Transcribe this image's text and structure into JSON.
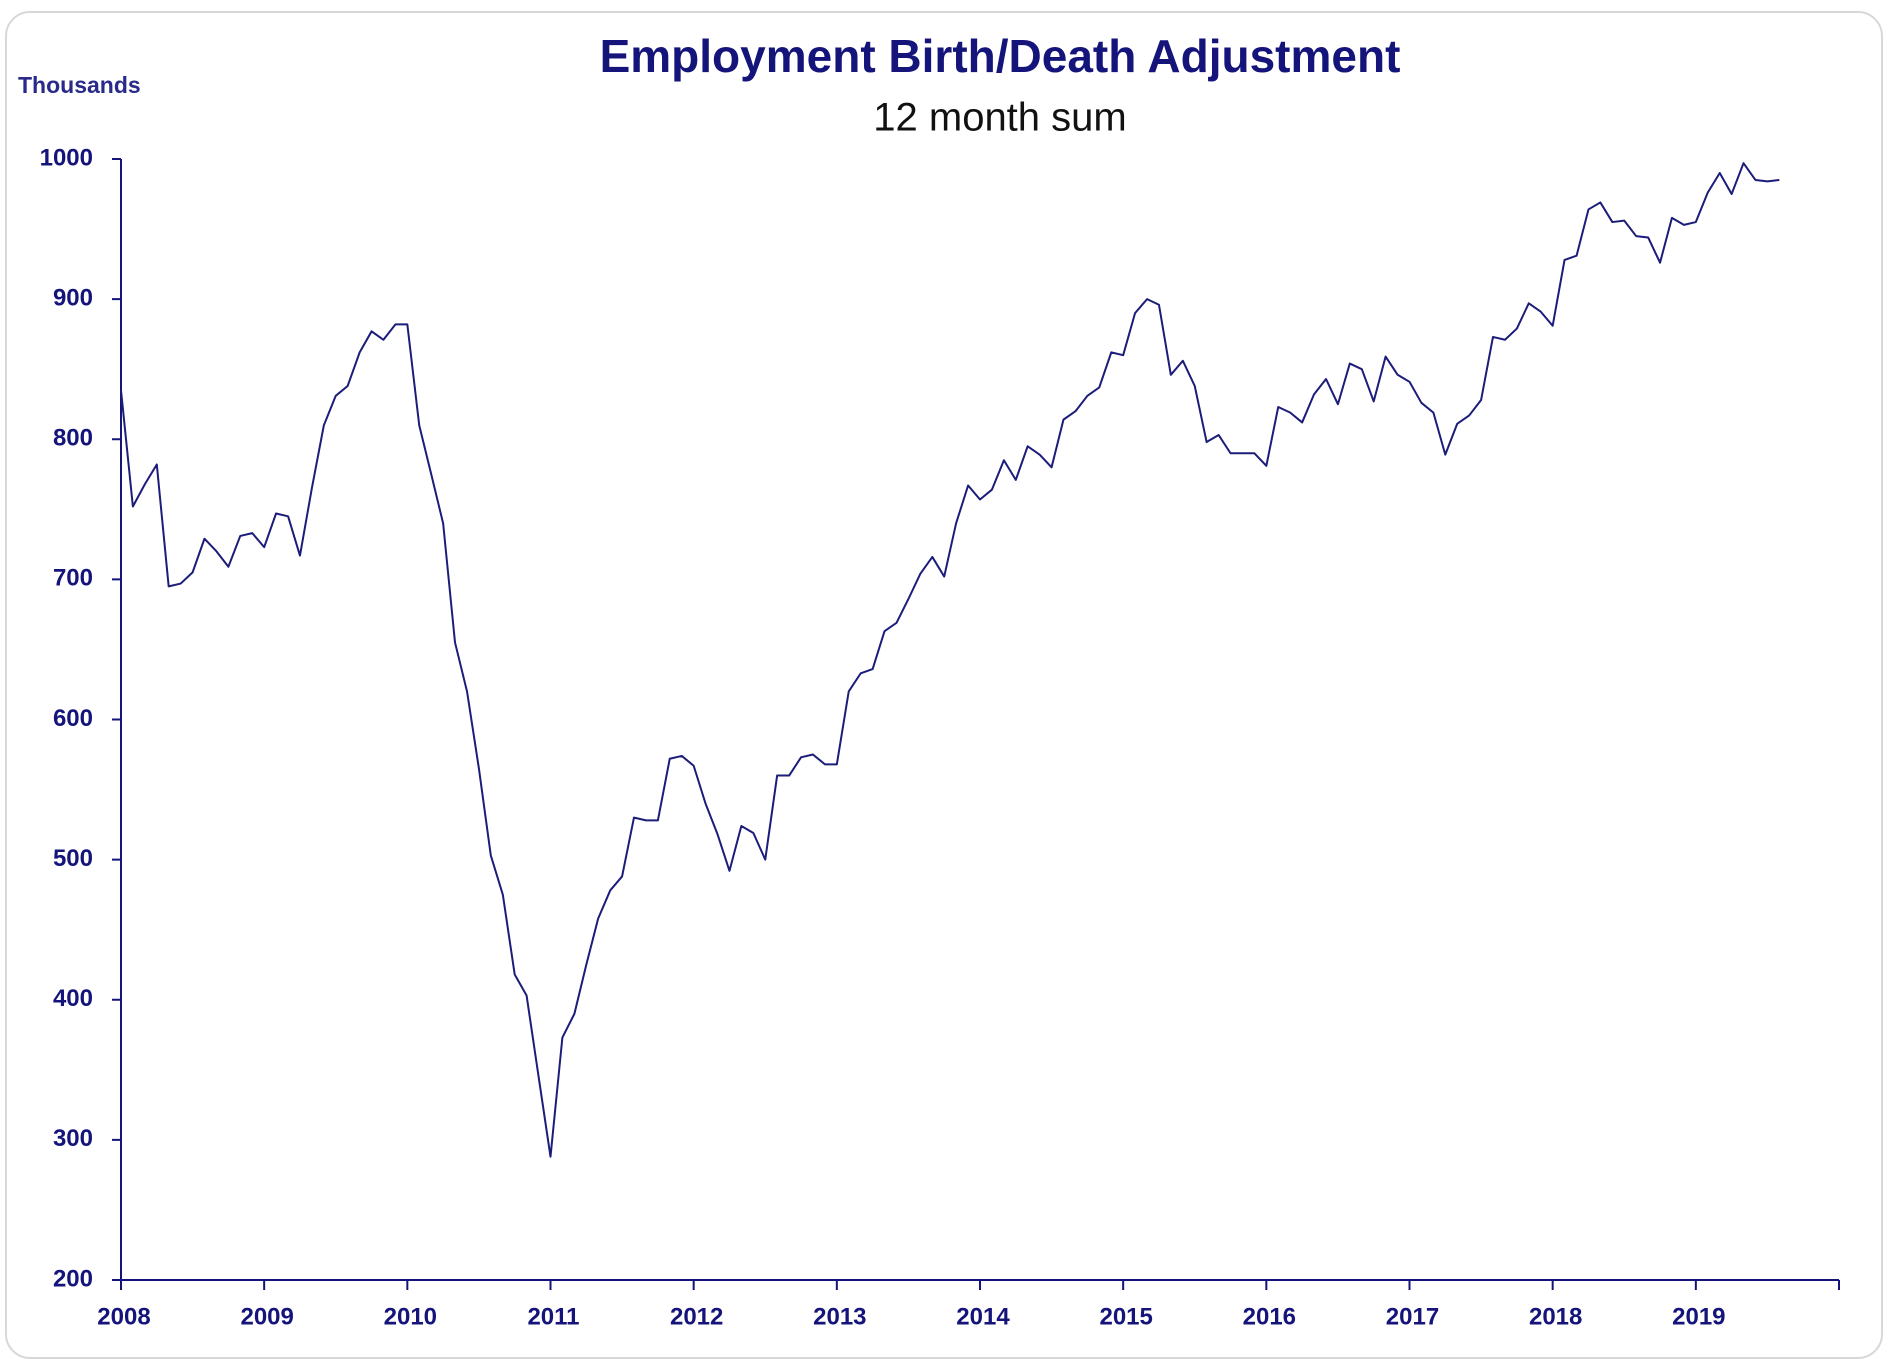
{
  "chart_data": {
    "type": "line",
    "title": "Employment Birth/Death Adjustment",
    "subtitle": "12 month sum",
    "y_label": "Thousands",
    "xlim": [
      2008,
      2020
    ],
    "xticks": [
      2008,
      2009,
      2010,
      2011,
      2012,
      2013,
      2014,
      2015,
      2016,
      2017,
      2018,
      2019
    ],
    "ylim": [
      200,
      1000
    ],
    "yticks": [
      200,
      300,
      400,
      500,
      600,
      700,
      800,
      900,
      1000
    ],
    "grid": false,
    "x": [
      2008,
      2008.083,
      2008.167,
      2008.25,
      2008.333,
      2008.417,
      2008.5,
      2008.583,
      2008.667,
      2008.75,
      2008.833,
      2008.917,
      2009,
      2009.083,
      2009.167,
      2009.25,
      2009.333,
      2009.417,
      2009.5,
      2009.583,
      2009.667,
      2009.75,
      2009.833,
      2009.917,
      2010,
      2010.083,
      2010.167,
      2010.25,
      2010.333,
      2010.417,
      2010.5,
      2010.583,
      2010.667,
      2010.75,
      2010.833,
      2010.917,
      2011,
      2011.083,
      2011.167,
      2011.25,
      2011.333,
      2011.417,
      2011.5,
      2011.583,
      2011.667,
      2011.75,
      2011.833,
      2011.917,
      2012,
      2012.083,
      2012.167,
      2012.25,
      2012.333,
      2012.417,
      2012.5,
      2012.583,
      2012.667,
      2012.75,
      2012.833,
      2012.917,
      2013,
      2013.083,
      2013.167,
      2013.25,
      2013.333,
      2013.417,
      2013.5,
      2013.583,
      2013.667,
      2013.75,
      2013.833,
      2013.917,
      2014,
      2014.083,
      2014.167,
      2014.25,
      2014.333,
      2014.417,
      2014.5,
      2014.583,
      2014.667,
      2014.75,
      2014.833,
      2014.917,
      2015,
      2015.083,
      2015.167,
      2015.25,
      2015.333,
      2015.417,
      2015.5,
      2015.583,
      2015.667,
      2015.75,
      2015.833,
      2015.917,
      2016,
      2016.083,
      2016.167,
      2016.25,
      2016.333,
      2016.417,
      2016.5,
      2016.583,
      2016.667,
      2016.75,
      2016.833,
      2016.917,
      2017,
      2017.083,
      2017.167,
      2017.25,
      2017.333,
      2017.417,
      2017.5,
      2017.583,
      2017.667,
      2017.75,
      2017.833,
      2017.917,
      2018,
      2018.083,
      2018.167,
      2018.25,
      2018.333,
      2018.417,
      2018.5,
      2018.583,
      2018.667,
      2018.75,
      2018.833,
      2018.917,
      2019,
      2019.083,
      2019.167,
      2019.25,
      2019.333,
      2019.417,
      2019.5,
      2019.583
    ],
    "series": [
      {
        "name": "Birth/Death adjustment",
        "color": "#1c1c7a",
        "values": [
          835,
          752,
          768,
          782,
          695,
          697,
          705,
          729,
          720,
          709,
          731,
          733,
          723,
          747,
          745,
          717,
          765,
          810,
          831,
          838,
          862,
          877,
          871,
          882,
          882,
          810,
          775,
          740,
          655,
          620,
          565,
          503,
          475,
          418,
          403,
          345,
          288,
          373,
          390,
          425,
          458,
          478,
          488,
          530,
          528,
          528,
          572,
          574,
          567,
          540,
          518,
          492,
          524,
          519,
          500,
          560,
          560,
          573,
          575,
          568,
          568,
          620,
          633,
          636,
          663,
          669,
          686,
          704,
          716,
          702,
          740,
          767,
          757,
          764,
          785,
          771,
          795,
          789,
          780,
          814,
          820,
          831,
          837,
          862,
          860,
          890,
          900,
          896,
          846,
          856,
          838,
          798,
          803,
          790,
          790,
          790,
          781,
          823,
          819,
          812,
          832,
          843,
          825,
          854,
          850,
          827,
          859,
          846,
          841,
          826,
          819,
          789,
          811,
          817,
          828,
          873,
          871,
          879,
          897,
          891,
          881,
          928,
          931,
          964,
          969,
          955,
          956,
          945,
          944,
          926,
          958,
          953,
          955,
          976,
          990,
          975,
          997,
          985,
          984,
          985
        ]
      }
    ]
  }
}
